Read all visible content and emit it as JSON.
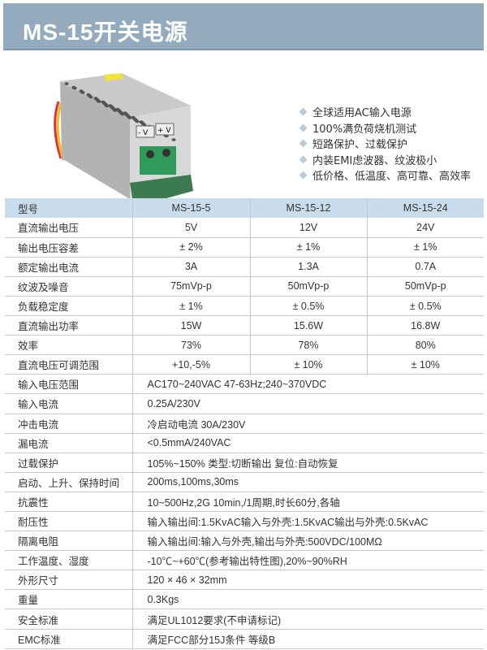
{
  "title": "MS-15开关电源",
  "features": [
    "全球适用AC输入电源",
    "100%满负荷烧机测试",
    "短路保护、过载保护",
    "内装EMI虑波器、纹波极小",
    "低价格、低温度、高可靠、高效率"
  ],
  "product_image": {
    "terminal_labels": [
      "- V",
      "+ V"
    ]
  },
  "table": {
    "header": [
      "型号",
      "MS-15-5",
      "MS-15-12",
      "MS-15-24"
    ],
    "model_rows": [
      [
        "直流输出电压",
        "5V",
        "12V",
        "24V"
      ],
      [
        "输出电压容差",
        "± 2%",
        "± 1%",
        "± 1%"
      ],
      [
        "额定输出电流",
        "3A",
        "1.3A",
        "0.7A"
      ],
      [
        "纹波及噪音",
        "75mVp-p",
        "50mVp-p",
        "50mVp-p"
      ],
      [
        "负载稳定度",
        "± 1%",
        "± 0.5%",
        "± 0.5%"
      ],
      [
        "直流输出功率",
        "15W",
        "15.6W",
        "16.8W"
      ],
      [
        "效率",
        "73%",
        "78%",
        "80%"
      ],
      [
        "直流电压可调范围",
        "+10,-5%",
        "± 10%",
        "± 10%"
      ]
    ],
    "common_rows": [
      [
        "输入电压范围",
        "AC170~240VAC 47-63Hz;240~370VDC"
      ],
      [
        "输入电流",
        "0.25A/230V"
      ],
      [
        "冲击电流",
        "冷启动电流 30A/230V"
      ],
      [
        "漏电流",
        "<0.5mmA/240VAC"
      ],
      [
        "过载保护",
        "105%~150% 类型:切断输出  复位:自动恢复"
      ],
      [
        "启动、上升、保持时间",
        "200ms,100ms,30ms"
      ],
      [
        "抗震性",
        "10~500Hz,2G 10min,/1周期,时长60分,各轴"
      ],
      [
        "耐压性",
        "输入输出间:1.5KvAC输入与外壳:1.5KvAC输出与外壳:0.5KvAC"
      ],
      [
        "隔离电阻",
        "输入输出间:输入与外壳,输出与外壳:500VDC/100MΩ"
      ],
      [
        "工作温度、湿度",
        "-10℃~+60℃(参考输出特性图),20%~90%RH"
      ],
      [
        "外形尺寸",
        "120 × 46 × 32mm"
      ],
      [
        "重量",
        "0.3Kgs"
      ],
      [
        "安全标准",
        "满足UL1012要求(不申请标记)"
      ],
      [
        "EMC标准",
        "满足FCC部分15J条件 等级B"
      ]
    ]
  },
  "colors": {
    "title_bar": "#93abbd",
    "header_row": "#c9dceb"
  }
}
